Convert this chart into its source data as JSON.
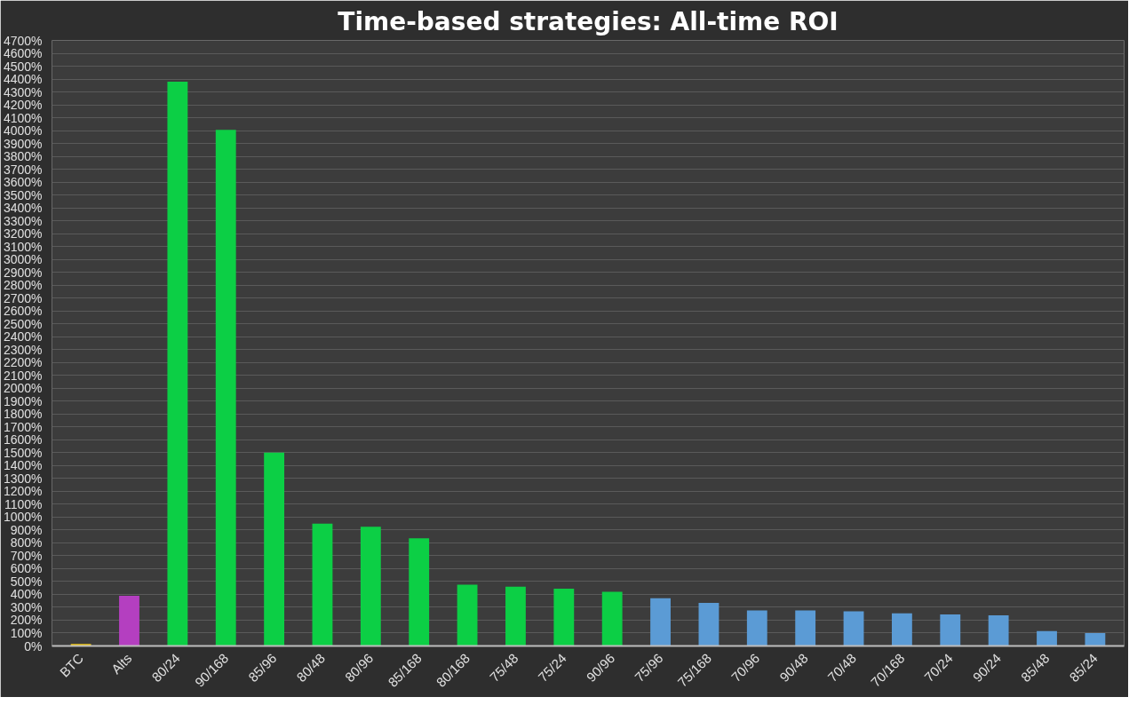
{
  "chart_data": {
    "type": "bar",
    "title": "Time-based strategies: All-time ROI",
    "categories": [
      "BTC",
      "Alts",
      "80/24",
      "90/168",
      "85/96",
      "80/48",
      "80/96",
      "85/168",
      "80/168",
      "75/48",
      "75/24",
      "90/96",
      "75/96",
      "75/168",
      "70/96",
      "90/48",
      "70/48",
      "70/168",
      "70/24",
      "90/24",
      "85/48",
      "85/24"
    ],
    "values": [
      15,
      390,
      4380,
      4005,
      1500,
      950,
      925,
      835,
      475,
      460,
      445,
      420,
      370,
      335,
      275,
      275,
      268,
      253,
      245,
      237,
      115,
      100
    ],
    "colors": [
      "#f2c80f",
      "#b43fc0",
      "#0ccf45",
      "#0ccf45",
      "#0ccf45",
      "#0ccf45",
      "#0ccf45",
      "#0ccf45",
      "#0ccf45",
      "#0ccf45",
      "#0ccf45",
      "#0ccf45",
      "#5b9bd5",
      "#5b9bd5",
      "#5b9bd5",
      "#5b9bd5",
      "#5b9bd5",
      "#5b9bd5",
      "#5b9bd5",
      "#5b9bd5",
      "#5b9bd5",
      "#5b9bd5"
    ],
    "ylim": [
      0,
      4700
    ],
    "yticks": [
      {
        "value": 0,
        "label": "0%"
      },
      {
        "value": 100,
        "label": "100%"
      },
      {
        "value": 200,
        "label": "200%"
      },
      {
        "value": 300,
        "label": "300%"
      },
      {
        "value": 400,
        "label": "400%"
      },
      {
        "value": 500,
        "label": "500%"
      },
      {
        "value": 600,
        "label": "600%"
      },
      {
        "value": 700,
        "label": "700%"
      },
      {
        "value": 800,
        "label": "800%"
      },
      {
        "value": 900,
        "label": "900%"
      },
      {
        "value": 1000,
        "label": "1000%"
      },
      {
        "value": 1100,
        "label": "1100%"
      },
      {
        "value": 1200,
        "label": "1200%"
      },
      {
        "value": 1300,
        "label": "1300%"
      },
      {
        "value": 1400,
        "label": "1400%"
      },
      {
        "value": 1500,
        "label": "1500%"
      },
      {
        "value": 1600,
        "label": "1600%"
      },
      {
        "value": 1700,
        "label": "1700%"
      },
      {
        "value": 1800,
        "label": "1800%"
      },
      {
        "value": 1900,
        "label": "1900%"
      },
      {
        "value": 2000,
        "label": "2000%"
      },
      {
        "value": 2100,
        "label": "2100%"
      },
      {
        "value": 2200,
        "label": "2200%"
      },
      {
        "value": 2300,
        "label": "2300%"
      },
      {
        "value": 2400,
        "label": "2400%"
      },
      {
        "value": 2500,
        "label": "2500%"
      },
      {
        "value": 2600,
        "label": "2600%"
      },
      {
        "value": 2700,
        "label": "2700%"
      },
      {
        "value": 2800,
        "label": "2800%"
      },
      {
        "value": 2900,
        "label": "2900%"
      },
      {
        "value": 3000,
        "label": "3000%"
      },
      {
        "value": 3100,
        "label": "3100%"
      },
      {
        "value": 3200,
        "label": "3200%"
      },
      {
        "value": 3300,
        "label": "3300%"
      },
      {
        "value": 3400,
        "label": "3400%"
      },
      {
        "value": 3500,
        "label": "3500%"
      },
      {
        "value": 3600,
        "label": "3600%"
      },
      {
        "value": 3700,
        "label": "3700%"
      },
      {
        "value": 3800,
        "label": "3800%"
      },
      {
        "value": 3900,
        "label": "3900%"
      },
      {
        "value": 4000,
        "label": "4000%"
      },
      {
        "value": 4100,
        "label": "4100%"
      },
      {
        "value": 4200,
        "label": "4200%"
      },
      {
        "value": 4300,
        "label": "4300%"
      },
      {
        "value": 4400,
        "label": "4400%"
      },
      {
        "value": 4500,
        "label": "4500%"
      },
      {
        "value": 4600,
        "label": "4600%"
      },
      {
        "value": 4700,
        "label": "4700%"
      }
    ],
    "grid": "y"
  }
}
